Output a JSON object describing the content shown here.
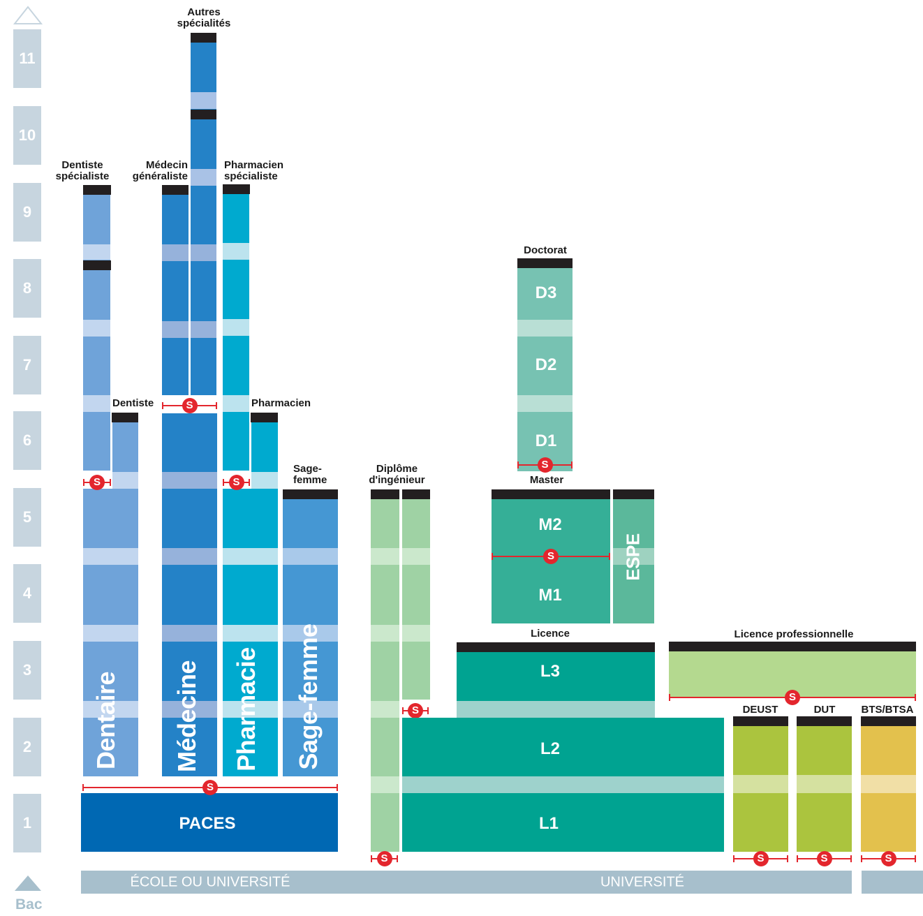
{
  "axis": {
    "years": [
      "1",
      "2",
      "3",
      "4",
      "5",
      "6",
      "7",
      "8",
      "9",
      "10",
      "11"
    ],
    "bottom_label": "Bac"
  },
  "columns": {
    "dentaire": "Dentaire",
    "medecine": "Médecine",
    "pharmacie": "Pharmacie",
    "sage_femme": "Sage-femme",
    "paces": "PACES"
  },
  "diplomas": {
    "dentiste_specialiste": [
      "Dentiste",
      "spécialiste"
    ],
    "dentiste": "Dentiste",
    "medecin_generaliste": [
      "Médecin",
      "généraliste"
    ],
    "autres_specialites": [
      "Autres",
      "spécialités"
    ],
    "pharmacien_specialiste": [
      "Pharmacien",
      "spécialiste"
    ],
    "pharmacien": "Pharmacien",
    "sage_femme": [
      "Sage-",
      "femme"
    ],
    "diplome_ingenieur": [
      "Diplôme",
      "d'ingénieur"
    ],
    "doctorat": "Doctorat",
    "master": "Master",
    "licence": "Licence",
    "licence_pro": "Licence professionnelle",
    "deust": "DEUST",
    "dut": "DUT",
    "bts": "BTS/BTSA"
  },
  "levels": {
    "l1": "L1",
    "l2": "L2",
    "l3": "L3",
    "m1": "M1",
    "m2": "M2",
    "espe": "ESPE",
    "d1": "D1",
    "d2": "D2",
    "d3": "D3"
  },
  "selection_marker": "S",
  "bands": {
    "ecole_universite": "ÉCOLE OU UNIVERSITÉ",
    "universite": "UNIVERSITÉ"
  },
  "colors": {
    "dentaire": "#6fa3d9",
    "dentaire_light": "#c2d6ef",
    "medecine": "#2482c7",
    "medecine_light": "#96b2db",
    "pharmacie": "#00aacf",
    "pharmacie_light": "#bce3ee",
    "sage_femme": "#4597d3",
    "paces": "#0068b3",
    "ingenieur": "#9fd2a4",
    "doctorat": "#77c2b2",
    "master": "#35af97",
    "espe": "#5bb89b",
    "licence": "#00a391",
    "licence_pro": "#b4d98f",
    "deust_dut": "#abc43e",
    "bts": "#e3c14d",
    "year_box": "#c7d5df",
    "band": "#a7bfcc",
    "selection": "#e3262d",
    "diploma_bar": "#231f20"
  }
}
